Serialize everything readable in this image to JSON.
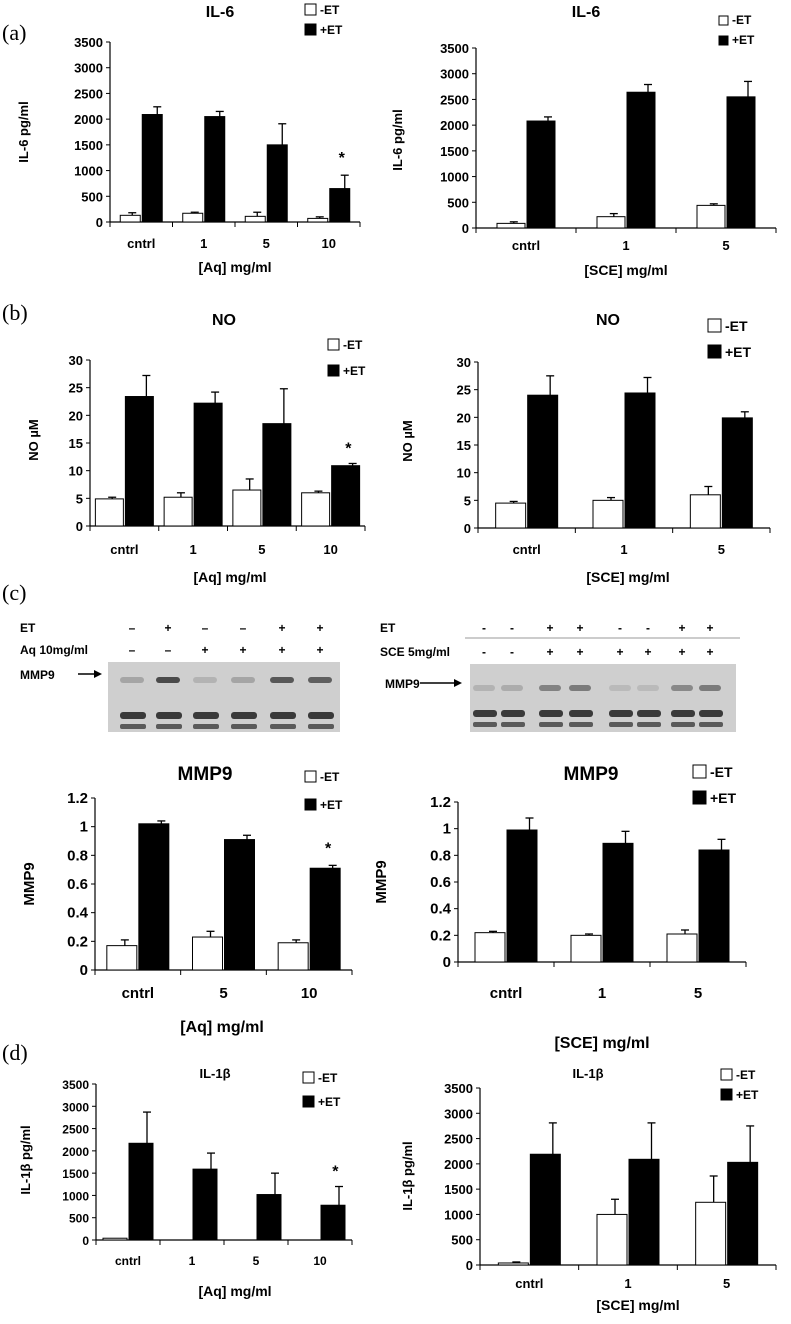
{
  "panels": [
    {
      "letter": "(a)"
    },
    {
      "letter": "(b)"
    },
    {
      "letter": "(c)"
    },
    {
      "letter": "(d)"
    }
  ],
  "colors": {
    "minus_et": "#ffffff",
    "plus_et": "#000000",
    "axis": "#000000"
  },
  "chart_data": [
    {
      "id": "a-left",
      "type": "bar",
      "title": "IL-6",
      "xlabel": "[Aq] mg/ml",
      "ylabel": "IL-6 pg/ml",
      "categories": [
        "cntrl",
        "1",
        "5",
        "10"
      ],
      "yticks": [
        0,
        500,
        1000,
        1500,
        2000,
        2500,
        3000,
        3500
      ],
      "ylim": [
        0,
        3500
      ],
      "series": [
        {
          "name": "-ET",
          "values": [
            130,
            170,
            110,
            70
          ],
          "errors": [
            50,
            20,
            80,
            30
          ]
        },
        {
          "name": "+ET",
          "values": [
            2090,
            2050,
            1500,
            650
          ],
          "errors": [
            150,
            100,
            410,
            260
          ]
        }
      ],
      "annotations": [
        {
          "category": "10",
          "text": "*"
        }
      ],
      "legend": "top-right"
    },
    {
      "id": "a-right",
      "type": "bar",
      "title": "IL-6",
      "xlabel": "[SCE] mg/ml",
      "ylabel": "IL-6 pg/ml",
      "categories": [
        "cntrl",
        "1",
        "5"
      ],
      "yticks": [
        0,
        500,
        1000,
        1500,
        2000,
        2500,
        3000,
        3500
      ],
      "ylim": [
        0,
        3500
      ],
      "series": [
        {
          "name": "-ET",
          "values": [
            90,
            220,
            440
          ],
          "errors": [
            30,
            60,
            30
          ]
        },
        {
          "name": "+ET",
          "values": [
            2080,
            2640,
            2550
          ],
          "errors": [
            80,
            150,
            300
          ]
        }
      ],
      "annotations": [],
      "legend": "top-right"
    },
    {
      "id": "b-left",
      "type": "bar",
      "title": "NO",
      "xlabel": "[Aq] mg/ml",
      "ylabel": "NO µM",
      "categories": [
        "cntrl",
        "1",
        "5",
        "10"
      ],
      "yticks": [
        0,
        5,
        10,
        15,
        20,
        25,
        30
      ],
      "ylim": [
        0,
        30
      ],
      "series": [
        {
          "name": "-ET",
          "values": [
            4.9,
            5.2,
            6.5,
            6.0
          ],
          "errors": [
            0.3,
            0.8,
            2.0,
            0.3
          ]
        },
        {
          "name": "+ET",
          "values": [
            23.4,
            22.2,
            18.5,
            10.9
          ],
          "errors": [
            3.8,
            2.0,
            6.3,
            0.4
          ]
        }
      ],
      "annotations": [
        {
          "category": "10",
          "text": "*"
        }
      ],
      "legend": "top-right"
    },
    {
      "id": "b-right",
      "type": "bar",
      "title": "NO",
      "xlabel": "[SCE] mg/ml",
      "ylabel": "NO µM",
      "categories": [
        "cntrl",
        "1",
        "5"
      ],
      "yticks": [
        0,
        5,
        10,
        15,
        20,
        25,
        30
      ],
      "ylim": [
        0,
        30
      ],
      "series": [
        {
          "name": "-ET",
          "values": [
            4.5,
            5.0,
            6.0
          ],
          "errors": [
            0.3,
            0.5,
            1.5
          ]
        },
        {
          "name": "+ET",
          "values": [
            24.0,
            24.4,
            19.9
          ],
          "errors": [
            3.5,
            2.8,
            1.1
          ]
        }
      ],
      "annotations": [],
      "legend": "top-right"
    },
    {
      "id": "c-left",
      "type": "bar",
      "title": "MMP9",
      "xlabel": "[Aq] mg/ml",
      "ylabel": "MMP9",
      "categories": [
        "cntrl",
        "5",
        "10"
      ],
      "yticks": [
        0,
        0.2,
        0.4,
        0.6,
        0.8,
        1,
        1.2
      ],
      "ylim": [
        0,
        1.2
      ],
      "series": [
        {
          "name": "-ET",
          "values": [
            0.17,
            0.23,
            0.19
          ],
          "errors": [
            0.04,
            0.04,
            0.02
          ]
        },
        {
          "name": "+ET",
          "values": [
            1.02,
            0.91,
            0.71
          ],
          "errors": [
            0.02,
            0.03,
            0.02
          ]
        }
      ],
      "annotations": [
        {
          "category": "10",
          "text": "*"
        }
      ],
      "legend": "top-right"
    },
    {
      "id": "c-right",
      "type": "bar",
      "title": "MMP9",
      "xlabel": "[SCE] mg/ml",
      "ylabel": "MMP9",
      "categories": [
        "cntrl",
        "1",
        "5"
      ],
      "yticks": [
        0,
        0.2,
        0.4,
        0.6,
        0.8,
        1,
        1.2
      ],
      "ylim": [
        0,
        1.2
      ],
      "series": [
        {
          "name": "-ET",
          "values": [
            0.22,
            0.2,
            0.21
          ],
          "errors": [
            0.01,
            0.01,
            0.03
          ]
        },
        {
          "name": "+ET",
          "values": [
            0.99,
            0.89,
            0.84
          ],
          "errors": [
            0.09,
            0.09,
            0.08
          ]
        }
      ],
      "annotations": [],
      "legend": "top-right"
    },
    {
      "id": "d-left",
      "type": "bar",
      "title": "IL-1β",
      "xlabel": "[Aq] mg/ml",
      "ylabel": "IL-1β pg/ml",
      "categories": [
        "cntrl",
        "1",
        "5",
        "10"
      ],
      "yticks": [
        0,
        500,
        1000,
        1500,
        2000,
        2500,
        3000,
        3500
      ],
      "ylim": [
        0,
        3500
      ],
      "series": [
        {
          "name": "-ET",
          "values": [
            40,
            0,
            0,
            0
          ],
          "errors": [
            0,
            0,
            0,
            0
          ]
        },
        {
          "name": "+ET",
          "values": [
            2170,
            1590,
            1020,
            780
          ],
          "errors": [
            700,
            360,
            480,
            420
          ]
        }
      ],
      "annotations": [
        {
          "category": "10",
          "text": "*"
        }
      ],
      "legend": "top-right"
    },
    {
      "id": "d-right",
      "type": "bar",
      "title": "IL-1β",
      "xlabel": "[SCE] mg/ml",
      "ylabel": "IL-1β pg/ml",
      "categories": [
        "cntrl",
        "1",
        "5"
      ],
      "yticks": [
        0,
        500,
        1000,
        1500,
        2000,
        2500,
        3000,
        3500
      ],
      "ylim": [
        0,
        3500
      ],
      "series": [
        {
          "name": "-ET",
          "values": [
            40,
            1000,
            1240
          ],
          "errors": [
            20,
            300,
            520
          ]
        },
        {
          "name": "+ET",
          "values": [
            2190,
            2090,
            2030
          ],
          "errors": [
            620,
            720,
            720
          ]
        }
      ],
      "annotations": [],
      "legend": "top-right"
    }
  ],
  "blots": [
    {
      "id": "blot-left",
      "rows": [
        {
          "label": "ET",
          "signs": [
            "–",
            "+",
            "–",
            "–",
            "+",
            "+"
          ]
        },
        {
          "label": "Aq 10mg/ml",
          "signs": [
            "–",
            "–",
            "+",
            "+",
            "+",
            "+"
          ]
        }
      ],
      "band_label": "MMP9",
      "mmp9_band_intensity": [
        0.25,
        0.9,
        0.15,
        0.25,
        0.8,
        0.75
      ]
    },
    {
      "id": "blot-right",
      "rows": [
        {
          "label": "ET",
          "signs": [
            "-",
            "-",
            "+",
            "+",
            "-",
            "-",
            "+",
            "+"
          ]
        },
        {
          "label": "SCE 5mg/ml",
          "signs": [
            "-",
            "-",
            "+",
            "+",
            "+",
            "+",
            "+",
            "+"
          ]
        }
      ],
      "band_label": "MMP9",
      "mmp9_band_intensity": [
        0.15,
        0.2,
        0.5,
        0.55,
        0.1,
        0.1,
        0.45,
        0.55
      ]
    }
  ]
}
